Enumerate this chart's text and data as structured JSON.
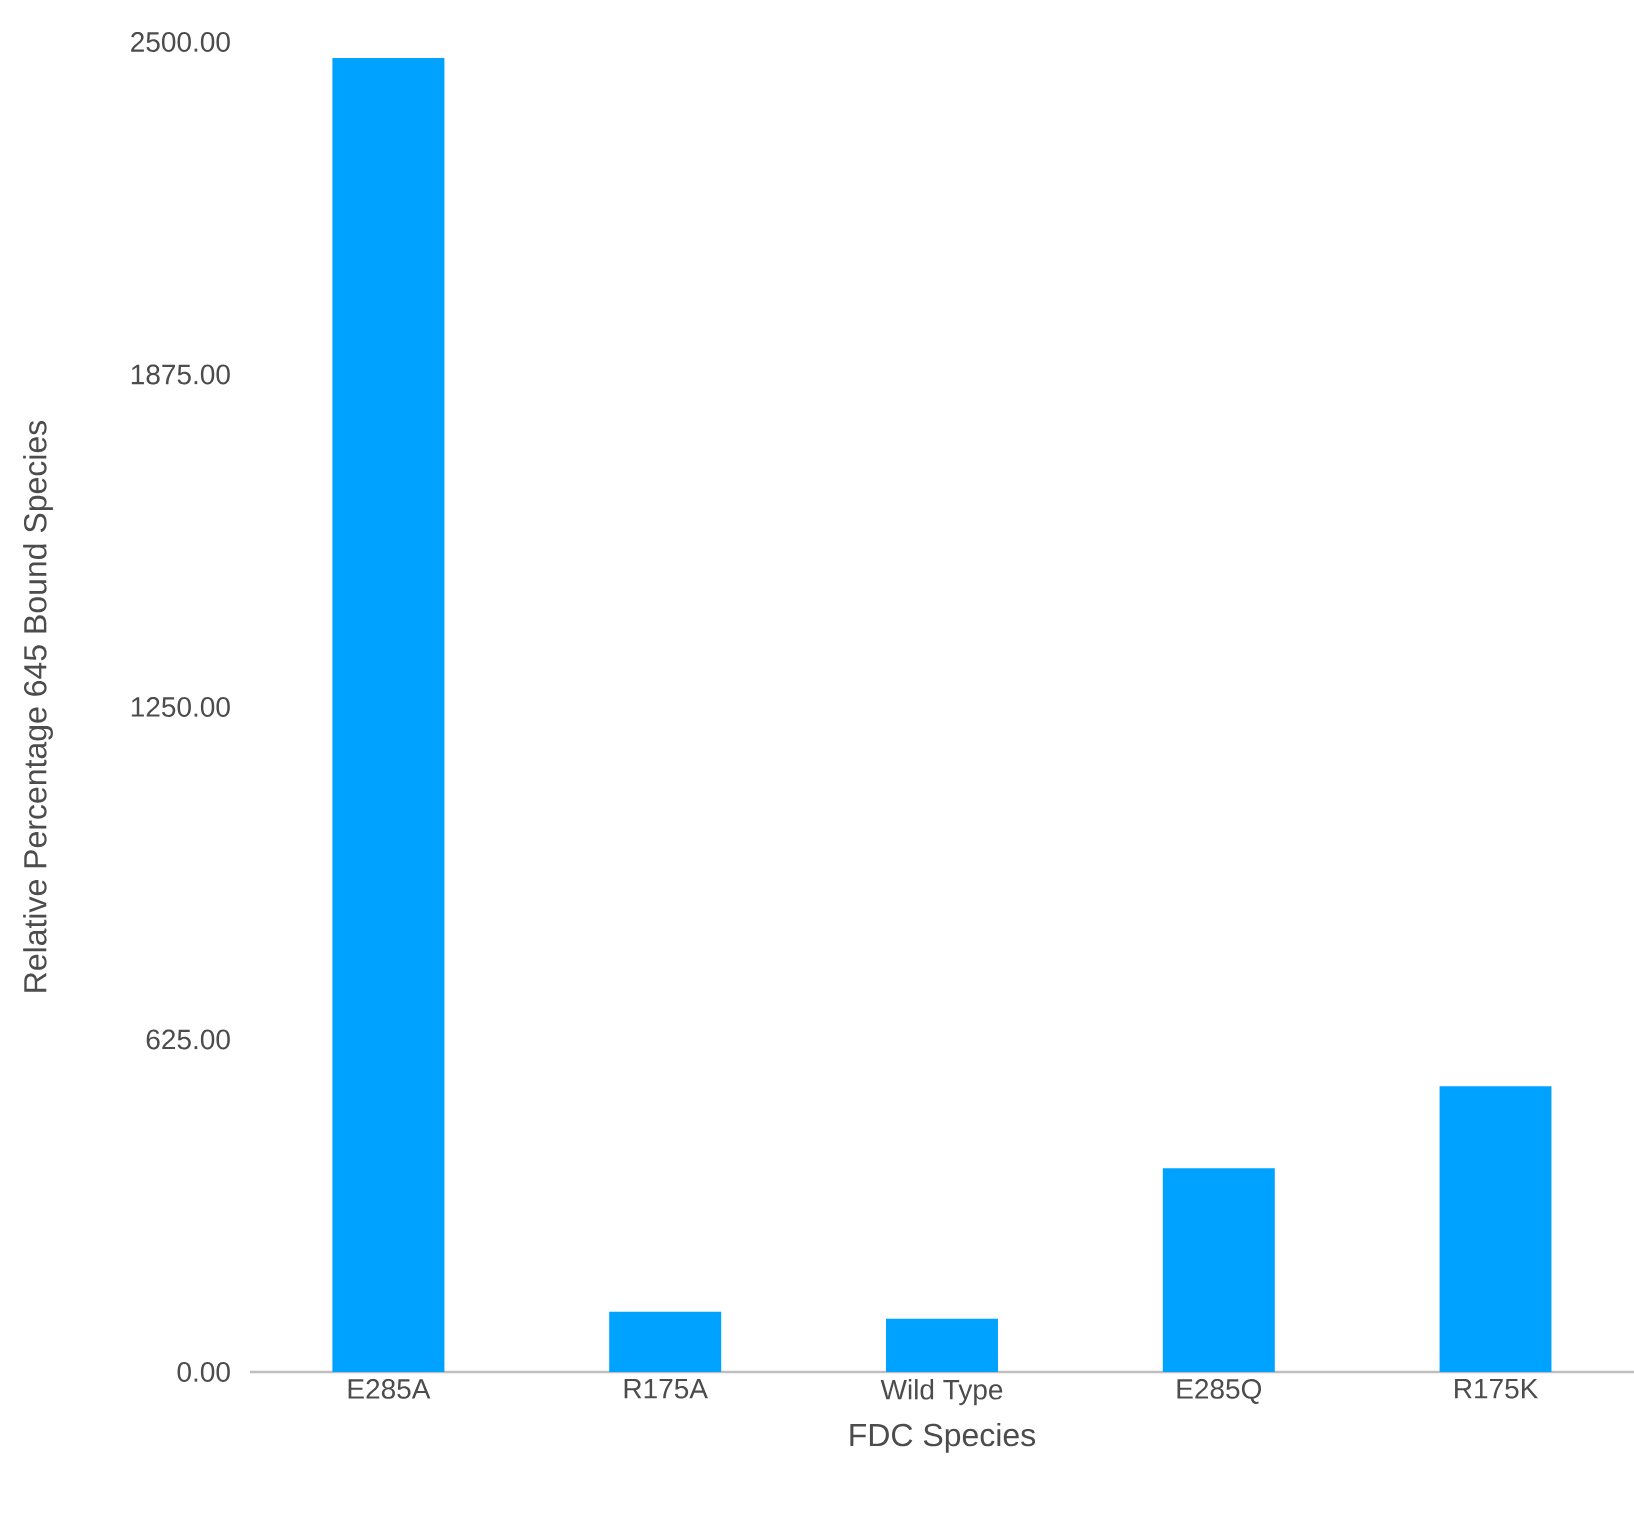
{
  "chart_data": {
    "type": "bar",
    "xlabel": "FDC Species",
    "ylabel": "Relative Percentage 645  Bound Species",
    "categories": [
      "E285A",
      "R175A",
      "Wild Type",
      "E285Q",
      "R175K"
    ],
    "values": [
      2470,
      113,
      100,
      383,
      537
    ],
    "color": "#00a2ff",
    "ylim": [
      0,
      2500
    ],
    "yticks": [
      {
        "value": 0,
        "label": "0.00"
      },
      {
        "value": 625,
        "label": "625.00"
      },
      {
        "value": 1250,
        "label": "1250.00"
      },
      {
        "value": 1875,
        "label": "1875.00"
      },
      {
        "value": 2500,
        "label": "2500.00"
      }
    ]
  }
}
